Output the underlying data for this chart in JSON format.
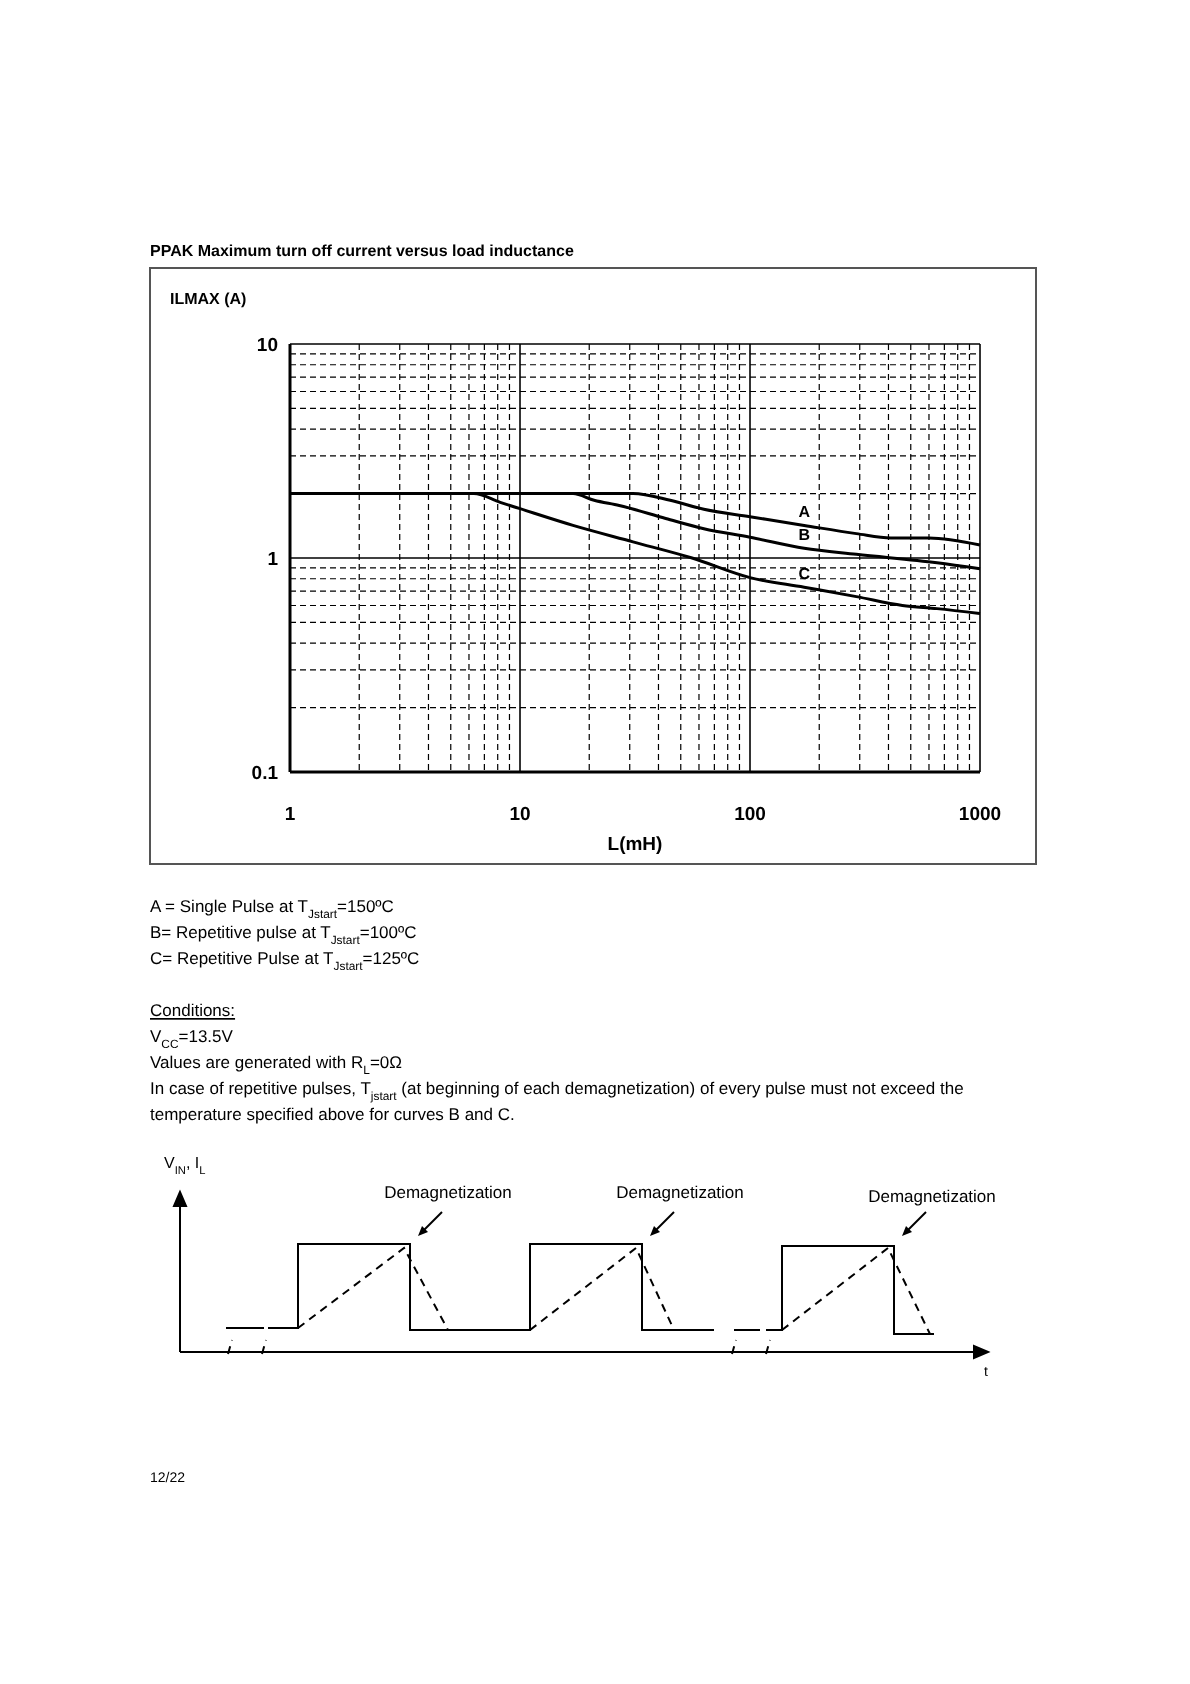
{
  "chart_data": {
    "type": "line",
    "title": "PPAK Maximum turn off current versus load inductance",
    "xlabel": "L(mH)",
    "ylabel": "ILMAX (A)",
    "log": "xy",
    "grid": true,
    "marker": "none",
    "line_style": "solid",
    "xlim": [
      1,
      1000
    ],
    "xticks": [
      1,
      10,
      100,
      1000
    ],
    "ylim": [
      0.1,
      10
    ],
    "yticks": [
      0.1,
      1,
      10
    ],
    "series": [
      {
        "name": "A",
        "color": "#000000",
        "x": [
          1,
          31,
          45,
          63,
          100,
          172,
          290,
          410,
          600,
          1000
        ],
        "values": [
          2.0,
          2.0,
          1.86,
          1.69,
          1.56,
          1.42,
          1.3,
          1.24,
          1.24,
          1.15
        ]
      },
      {
        "name": "B",
        "color": "#000000",
        "x": [
          1,
          17,
          21,
          27,
          43,
          63,
          100,
          172,
          290,
          650,
          1000
        ],
        "values": [
          2.0,
          2.0,
          1.86,
          1.76,
          1.53,
          1.37,
          1.25,
          1.11,
          1.04,
          0.95,
          0.89
        ]
      },
      {
        "name": "C",
        "color": "#000000",
        "x": [
          1,
          6.3,
          8.2,
          10,
          17,
          31,
          56,
          100,
          172,
          290,
          460,
          650,
          1000
        ],
        "values": [
          2.0,
          2.0,
          1.82,
          1.7,
          1.42,
          1.19,
          1.0,
          0.81,
          0.73,
          0.66,
          0.6,
          0.58,
          0.55
        ]
      }
    ],
    "annotations": [
      "A = Single Pulse at T$_{Jstart}$=150ºC",
      "B= Repetitive pulse at T$_{Jstart}$=100ºC",
      "C= Repetitive Pulse at T$_{Jstart}$=125ºC",
      "Conditions:",
      "V$_{CC}$=13.5V",
      "Values are generated with R$_{L}$=0Ω",
      "In case of repetitive pulses, T$_{jstart}$ (at beginning of each demagnetization) of every pulse must not exceed the temperature specified above for curves B and C.",
      "V$_{IN}$, I$_{L}$",
      "Demagnetization",
      "Demagnetization",
      "Demagnetization",
      "t",
      "12/22"
    ]
  }
}
